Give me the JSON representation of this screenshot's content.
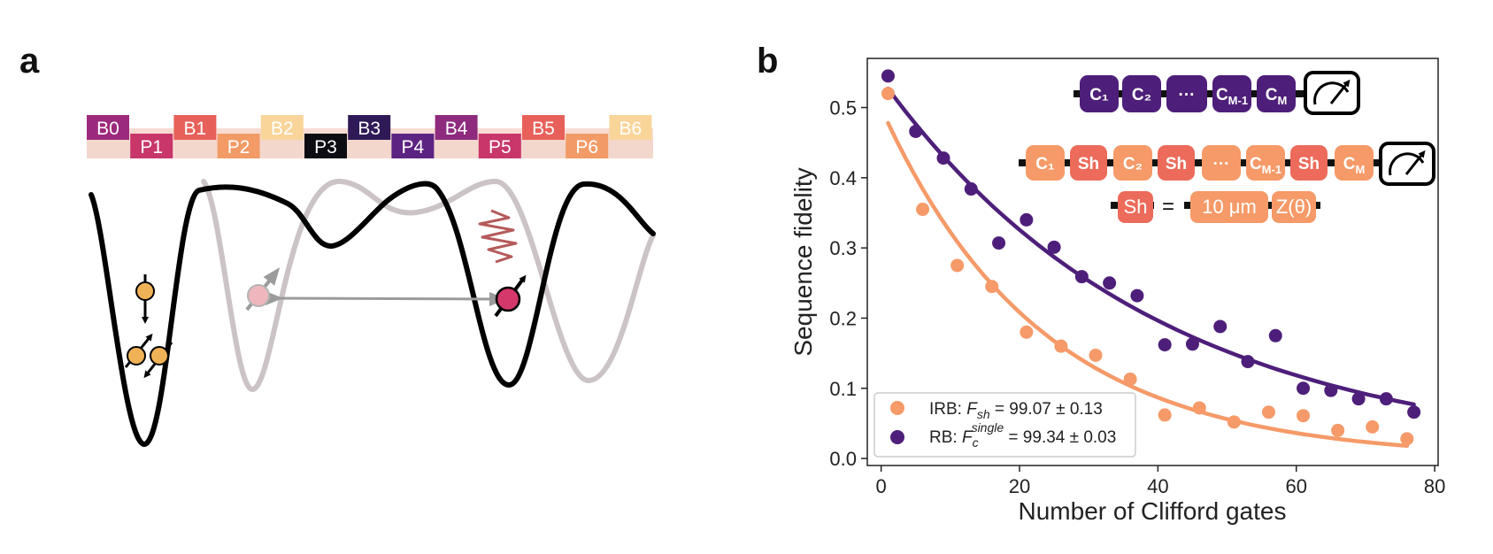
{
  "panel_a": {
    "letter": "a",
    "gates": [
      {
        "label": "B0",
        "color": "#9c2a7c",
        "row": "upper"
      },
      {
        "label": "P1",
        "color": "#c8366a",
        "row": "lower"
      },
      {
        "label": "B1",
        "color": "#e8605a",
        "row": "upper"
      },
      {
        "label": "P2",
        "color": "#f29b66",
        "row": "lower"
      },
      {
        "label": "B2",
        "color": "#f9d59a",
        "row": "upper"
      },
      {
        "label": "P3",
        "color": "#0d0c12",
        "row": "lower"
      },
      {
        "label": "B3",
        "color": "#2f1a57",
        "row": "upper"
      },
      {
        "label": "P4",
        "color": "#5c2383",
        "row": "lower"
      },
      {
        "label": "B4",
        "color": "#8e2b7e",
        "row": "upper"
      },
      {
        "label": "P5",
        "color": "#c8366a",
        "row": "lower"
      },
      {
        "label": "B5",
        "color": "#e8605a",
        "row": "upper"
      },
      {
        "label": "P6",
        "color": "#f29b66",
        "row": "lower"
      },
      {
        "label": "B6",
        "color": "#f9d59a",
        "row": "upper"
      }
    ],
    "colors": {
      "potential": "#000000",
      "shifted_potential": "#cbc3c5",
      "spin_orange": "#f0b256",
      "spin_pink": "#d5386a",
      "spin_faded": "#efb7bd",
      "noise": "#b55a5a",
      "arrow_grey": "#9b9b9b"
    }
  },
  "panel_b": {
    "letter": "b",
    "circuit_rb": {
      "labels": [
        "C₁",
        "C₂",
        "···",
        "C_M-1",
        "C_M"
      ],
      "color": "#4e1f7a"
    },
    "circuit_irb": {
      "labels": [
        "C₁",
        "Sh",
        "C₂",
        "Sh",
        "···",
        "C_M-1",
        "Sh",
        "C_M"
      ],
      "color": "#f59a68",
      "sh_color": "#ec6b5a"
    },
    "sh_definition": {
      "lhs": "Sh",
      "eq": "=",
      "rhs": [
        "10 μm",
        "Z(θ)"
      ]
    },
    "legend": [
      {
        "prefix": "IRB: ",
        "symbol": "F",
        "sub": "sh",
        "sup": "",
        "value": " = 99.07 ± 0.13",
        "color": "#f59a68"
      },
      {
        "prefix": "RB: ",
        "symbol": "F",
        "sub": "c",
        "sup": "single",
        "value": " = 99.34 ± 0.03",
        "color": "#4e1f7a"
      }
    ]
  },
  "chart_data": {
    "type": "scatter",
    "xlabel": "Number of Clifford gates",
    "ylabel": "Sequence fidelity",
    "xlim": [
      -2,
      80.5
    ],
    "ylim": [
      -0.01,
      0.57
    ],
    "xticks": [
      0,
      20,
      40,
      60,
      80
    ],
    "yticks": [
      0.0,
      0.1,
      0.2,
      0.3,
      0.4,
      0.5
    ],
    "ytick_labels": [
      "0.0",
      "0.1",
      "0.2",
      "0.3",
      "0.4",
      "0.5"
    ],
    "grid": false,
    "legend_position": "bottom-left",
    "series": [
      {
        "name": "IRB",
        "color": "#f59a68",
        "x": [
          1,
          6,
          11,
          16,
          21,
          26,
          31,
          36,
          41,
          46,
          51,
          56,
          61,
          66,
          71,
          76
        ],
        "y": [
          0.52,
          0.355,
          0.275,
          0.245,
          0.18,
          0.16,
          0.147,
          0.113,
          0.062,
          0.072,
          0.052,
          0.066,
          0.061,
          0.04,
          0.045,
          0.028
        ],
        "fit": {
          "x": [
            1,
            76
          ],
          "y": [
            0.478,
            0.018
          ]
        }
      },
      {
        "name": "RB",
        "color": "#4e1f7a",
        "x": [
          1,
          5,
          9,
          13,
          17,
          21,
          25,
          29,
          33,
          37,
          41,
          45,
          49,
          53,
          57,
          61,
          65,
          69,
          73,
          77
        ],
        "y": [
          0.545,
          0.466,
          0.428,
          0.384,
          0.307,
          0.34,
          0.301,
          0.259,
          0.25,
          0.232,
          0.162,
          0.163,
          0.188,
          0.138,
          0.175,
          0.1,
          0.097,
          0.085,
          0.085,
          0.066
        ],
        "fit": {
          "x": [
            1,
            77
          ],
          "y": [
            0.527,
            0.077
          ]
        }
      }
    ]
  }
}
